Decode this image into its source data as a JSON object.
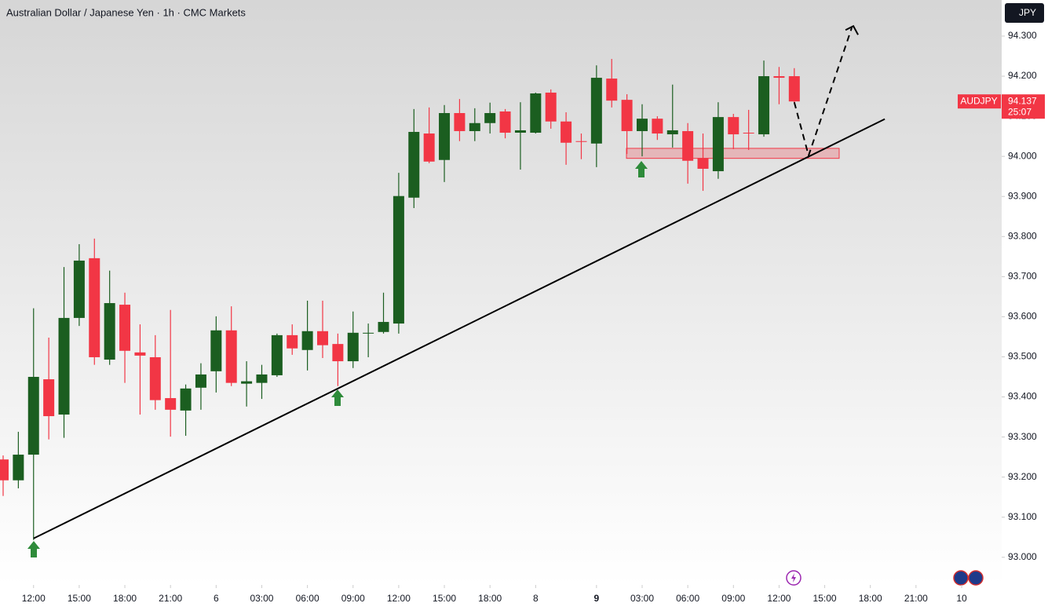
{
  "chart_data": {
    "type": "candlestick",
    "title": "Australian Dollar / Japanese Yen · 1h · CMC Markets",
    "currency": "JPY",
    "x": [
      0,
      1,
      2,
      3,
      4,
      5,
      6,
      7,
      8,
      9,
      10,
      11,
      12,
      13,
      14,
      15,
      16,
      17,
      18,
      19,
      20,
      21,
      22,
      23,
      24,
      25,
      26,
      27,
      28,
      29,
      30,
      31,
      32,
      33,
      34,
      35,
      36,
      37,
      38,
      39,
      40,
      41,
      42,
      43,
      44,
      45,
      46,
      47,
      48,
      49,
      50,
      51,
      52
    ],
    "open": [
      93.244,
      93.192,
      93.256,
      93.444,
      93.356,
      93.597,
      93.746,
      93.493,
      93.63,
      93.511,
      93.499,
      93.397,
      93.366,
      93.423,
      93.464,
      93.566,
      93.433,
      93.435,
      93.454,
      93.554,
      93.517,
      93.564,
      93.532,
      93.489,
      93.558,
      93.562,
      93.583,
      93.897,
      94.057,
      93.991,
      94.108,
      94.063,
      94.083,
      94.112,
      94.059,
      94.059,
      94.159,
      94.087,
      94.038,
      94.032,
      94.194,
      94.141,
      94.063,
      94.094,
      94.055,
      94.063,
      93.996,
      93.963,
      94.098,
      94.059,
      94.055,
      94.2,
      94.2
    ],
    "high": [
      93.254,
      93.313,
      93.621,
      93.548,
      93.724,
      93.781,
      93.795,
      93.715,
      93.66,
      93.581,
      93.554,
      93.617,
      93.431,
      93.484,
      93.601,
      93.626,
      93.489,
      93.48,
      93.558,
      93.581,
      93.64,
      93.64,
      93.558,
      93.613,
      93.583,
      93.66,
      93.959,
      94.118,
      94.122,
      94.128,
      94.143,
      94.12,
      94.134,
      94.118,
      94.135,
      94.159,
      94.167,
      94.11,
      94.057,
      94.227,
      94.243,
      94.155,
      94.13,
      94.1,
      94.179,
      94.083,
      94.057,
      94.135,
      94.106,
      94.116,
      94.239,
      94.223,
      94.22
    ],
    "low": [
      93.153,
      93.172,
      93.043,
      93.294,
      93.298,
      93.577,
      93.48,
      93.48,
      93.435,
      93.356,
      93.368,
      93.301,
      93.303,
      93.368,
      93.411,
      93.427,
      93.376,
      93.395,
      93.45,
      93.505,
      93.466,
      93.497,
      93.427,
      93.472,
      93.499,
      93.558,
      93.558,
      93.871,
      93.983,
      93.936,
      94.038,
      94.038,
      94.057,
      94.045,
      93.967,
      94.057,
      94.069,
      93.979,
      93.993,
      93.973,
      94.122,
      94.006,
      94.0,
      94.041,
      94.022,
      93.932,
      93.914,
      93.944,
      94.018,
      94.016,
      94.049,
      94.13,
      94.132
    ],
    "close": [
      93.192,
      93.256,
      93.45,
      93.352,
      93.597,
      93.74,
      93.499,
      93.634,
      93.515,
      93.503,
      93.392,
      93.368,
      93.421,
      93.456,
      93.566,
      93.435,
      93.439,
      93.456,
      93.554,
      93.521,
      93.564,
      93.529,
      93.489,
      93.56,
      93.56,
      93.587,
      93.901,
      94.061,
      93.987,
      94.108,
      94.063,
      94.083,
      94.108,
      94.059,
      94.065,
      94.157,
      94.087,
      94.034,
      94.036,
      94.196,
      94.139,
      94.063,
      94.094,
      94.057,
      94.065,
      93.989,
      93.969,
      94.098,
      94.055,
      94.057,
      94.2,
      94.196,
      94.137
    ],
    "up_color": "#1b5e20",
    "down_color": "#f23645",
    "xlim": [
      -0.206,
      65.58
    ],
    "ylim": [
      92.931,
      94.39
    ],
    "xticks": [
      {
        "value": 2,
        "label": "12:00"
      },
      {
        "value": 5,
        "label": "15:00"
      },
      {
        "value": 8,
        "label": "18:00"
      },
      {
        "value": 11,
        "label": "21:00"
      },
      {
        "value": 14,
        "label": "6"
      },
      {
        "value": 17,
        "label": "03:00"
      },
      {
        "value": 20,
        "label": "06:00"
      },
      {
        "value": 23,
        "label": "09:00"
      },
      {
        "value": 26,
        "label": "12:00"
      },
      {
        "value": 29,
        "label": "15:00"
      },
      {
        "value": 32,
        "label": "18:00"
      },
      {
        "value": 35,
        "label": "8"
      },
      {
        "value": 39,
        "label": "9"
      },
      {
        "value": 42,
        "label": "03:00"
      },
      {
        "value": 45,
        "label": "06:00"
      },
      {
        "value": 48,
        "label": "09:00"
      },
      {
        "value": 51,
        "label": "12:00"
      },
      {
        "value": 54,
        "label": "15:00"
      },
      {
        "value": 57,
        "label": "18:00"
      },
      {
        "value": 60,
        "label": "21:00"
      },
      {
        "value": 63,
        "label": "10"
      }
    ],
    "yticks": [
      {
        "value": 93.0,
        "label": "93.000"
      },
      {
        "value": 93.1,
        "label": "93.100"
      },
      {
        "value": 93.2,
        "label": "93.200"
      },
      {
        "value": 93.3,
        "label": "93.300"
      },
      {
        "value": 93.4,
        "label": "93.400"
      },
      {
        "value": 93.5,
        "label": "93.500"
      },
      {
        "value": 93.6,
        "label": "93.600"
      },
      {
        "value": 93.7,
        "label": "93.700"
      },
      {
        "value": 93.8,
        "label": "93.800"
      },
      {
        "value": 93.9,
        "label": "93.900"
      },
      {
        "value": 94.0,
        "label": "94.000"
      },
      {
        "value": 94.1,
        "label": "94.100"
      },
      {
        "value": 94.2,
        "label": "94.200"
      },
      {
        "value": 94.3,
        "label": "94.300"
      }
    ],
    "last_price": {
      "symbol": "AUDJPY",
      "value": 94.137,
      "countdown": "25:07"
    },
    "trendline": {
      "x": [
        2,
        57.95
      ],
      "y": [
        93.047,
        94.093
      ]
    },
    "zone": {
      "x": [
        40.97,
        54.95
      ],
      "y": [
        94.02,
        93.995
      ]
    },
    "projection": {
      "x": [
        52.0,
        52.94,
        55.78
      ],
      "y": [
        94.135,
        94.002,
        94.321
      ]
    }
  }
}
